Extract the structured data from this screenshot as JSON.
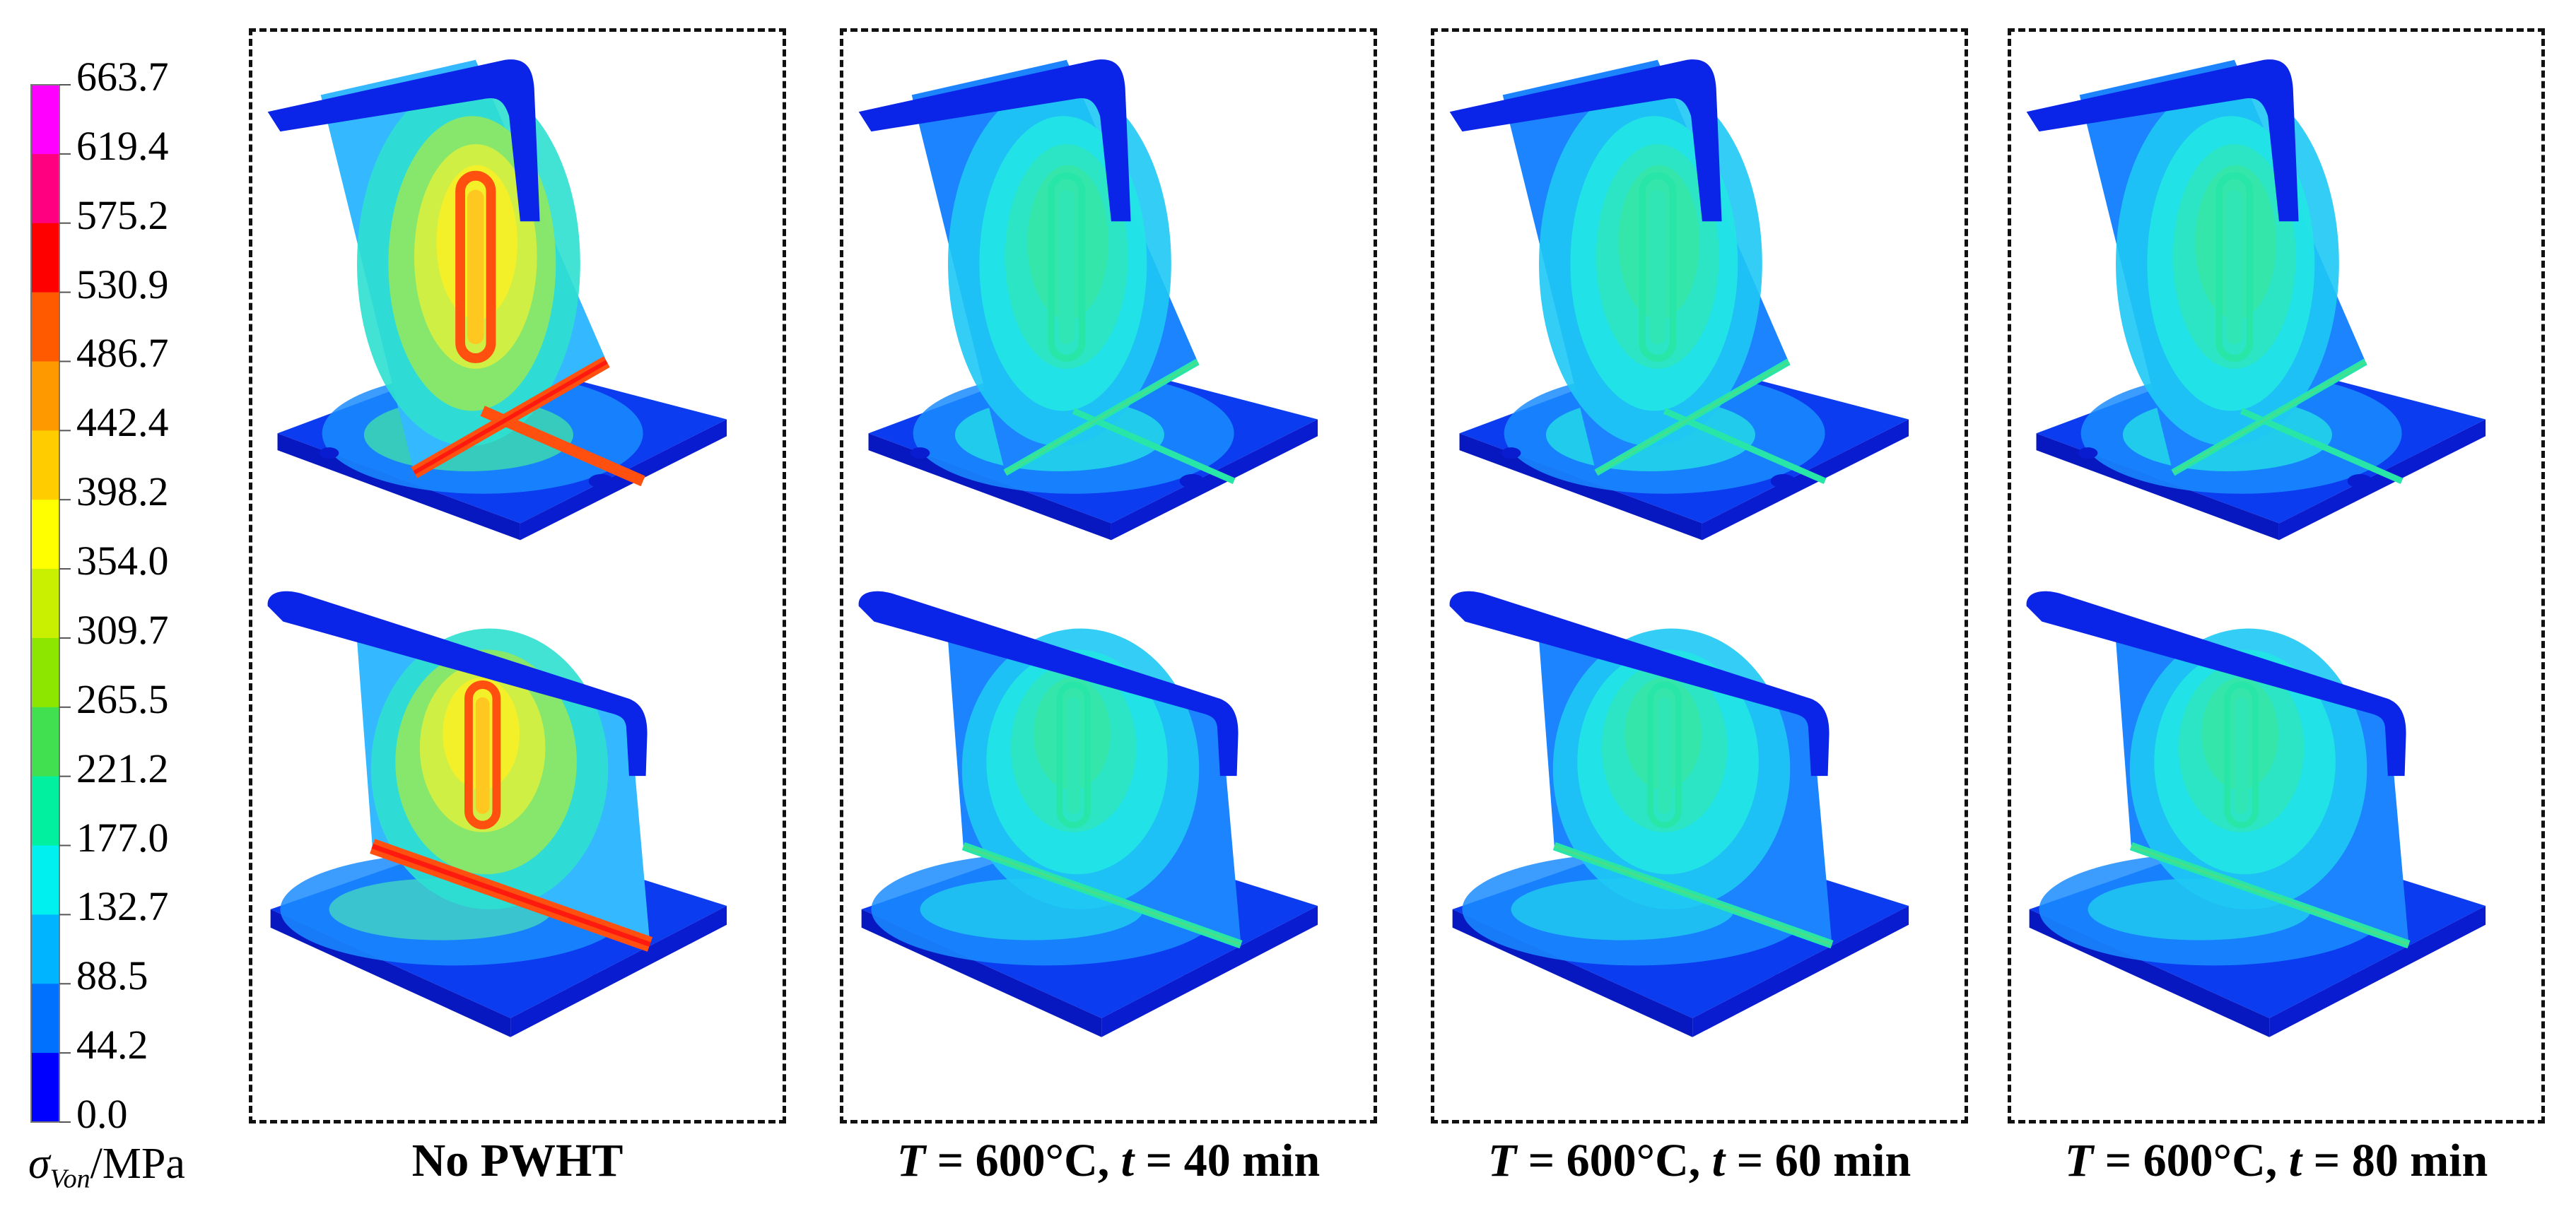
{
  "colorbar": {
    "ticks": [
      "663.7",
      "619.4",
      "575.2",
      "530.9",
      "486.7",
      "442.4",
      "398.2",
      "354.0",
      "309.7",
      "265.5",
      "221.2",
      "177.0",
      "132.7",
      "88.5",
      "44.2",
      "0.0"
    ],
    "colors": [
      "#ff00ff",
      "#ff0080",
      "#ff0000",
      "#ff5a00",
      "#ff9900",
      "#ffcc00",
      "#ffff00",
      "#c8f000",
      "#8ce600",
      "#40e050",
      "#00f0a0",
      "#00f0f0",
      "#00b4ff",
      "#0070ff",
      "#0000ff"
    ],
    "unit_symbol": "σ",
    "unit_sub": "Von",
    "unit_suffix": "/MPa"
  },
  "panels": [
    {
      "caption": "No PWHT",
      "state": "high"
    },
    {
      "caption_parts": [
        "T",
        " = 600°C, ",
        "t",
        " = 40 min"
      ],
      "state": "low"
    },
    {
      "caption_parts": [
        "T",
        " = 600°C, ",
        "t",
        " = 60 min"
      ],
      "state": "low"
    },
    {
      "caption_parts": [
        "T",
        " = 600°C, ",
        "t",
        " = 80 min"
      ],
      "state": "low"
    }
  ]
}
